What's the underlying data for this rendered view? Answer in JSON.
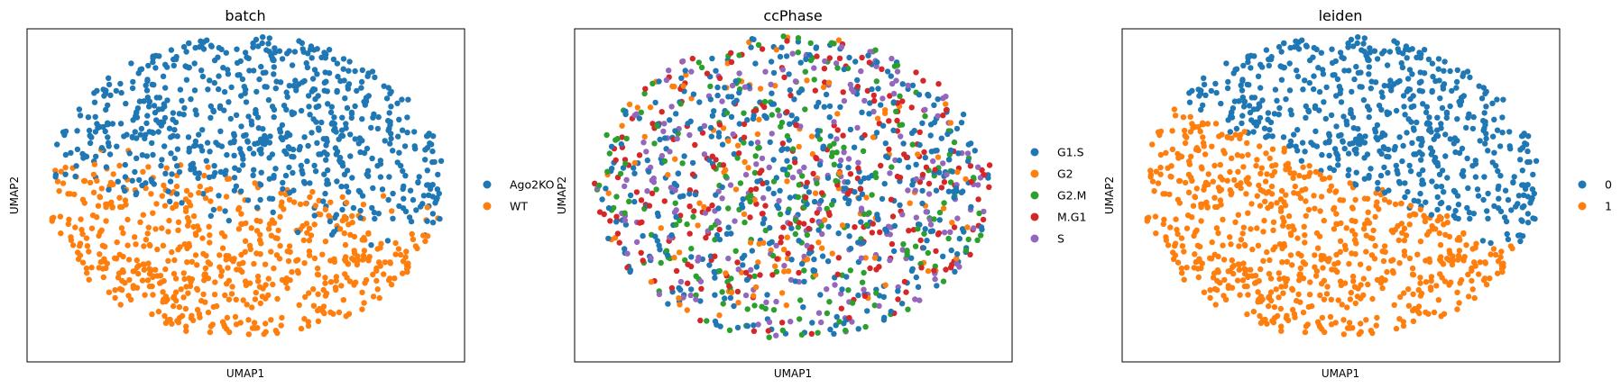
{
  "colors": {
    "tab_blue": "#1f77b4",
    "tab_orange": "#ff7f0e",
    "tab_green": "#2ca02c",
    "tab_red": "#d62728",
    "tab_purple": "#9467bd"
  },
  "chart_data": [
    {
      "type": "scatter",
      "title": "batch",
      "xlabel": "UMAP1",
      "ylabel": "UMAP2",
      "grid": false,
      "ticks": false,
      "legend_position": "right",
      "xlim": [
        -1.1,
        1.1
      ],
      "ylim": [
        -1.15,
        1.0
      ],
      "legend": [
        {
          "label": "Ago2KO",
          "color": "#1f77b4"
        },
        {
          "label": "WT",
          "color": "#ff7f0e"
        }
      ],
      "rule": "split",
      "split_params": {
        "slope": -0.25,
        "intercept": -0.08,
        "fuzz": 0.2
      },
      "n_points": 1300,
      "seed": 11
    },
    {
      "type": "scatter",
      "title": "ccPhase",
      "xlabel": "UMAP1",
      "ylabel": "UMAP2",
      "grid": false,
      "ticks": false,
      "legend_position": "right",
      "xlim": [
        -1.1,
        1.1
      ],
      "ylim": [
        -1.15,
        1.0
      ],
      "legend": [
        {
          "label": "G1.S",
          "color": "#1f77b4"
        },
        {
          "label": "G2",
          "color": "#ff7f0e"
        },
        {
          "label": "G2.M",
          "color": "#2ca02c"
        },
        {
          "label": "M.G1",
          "color": "#d62728"
        },
        {
          "label": "S",
          "color": "#9467bd"
        }
      ],
      "rule": "mixed",
      "mix_weights": [
        0.36,
        0.1,
        0.16,
        0.2,
        0.18
      ],
      "n_points": 1300,
      "seed": 23
    },
    {
      "type": "scatter",
      "title": "leiden",
      "xlabel": "UMAP1",
      "ylabel": "UMAP2",
      "grid": false,
      "ticks": false,
      "legend_position": "right",
      "xlim": [
        -1.1,
        1.1
      ],
      "ylim": [
        -1.15,
        1.0
      ],
      "legend": [
        {
          "label": "0",
          "color": "#1f77b4"
        },
        {
          "label": "1",
          "color": "#ff7f0e"
        }
      ],
      "rule": "split",
      "split_params": {
        "slope": -0.55,
        "intercept": 0.05,
        "fuzz": 0.04
      },
      "n_points": 1300,
      "seed": 11
    }
  ]
}
